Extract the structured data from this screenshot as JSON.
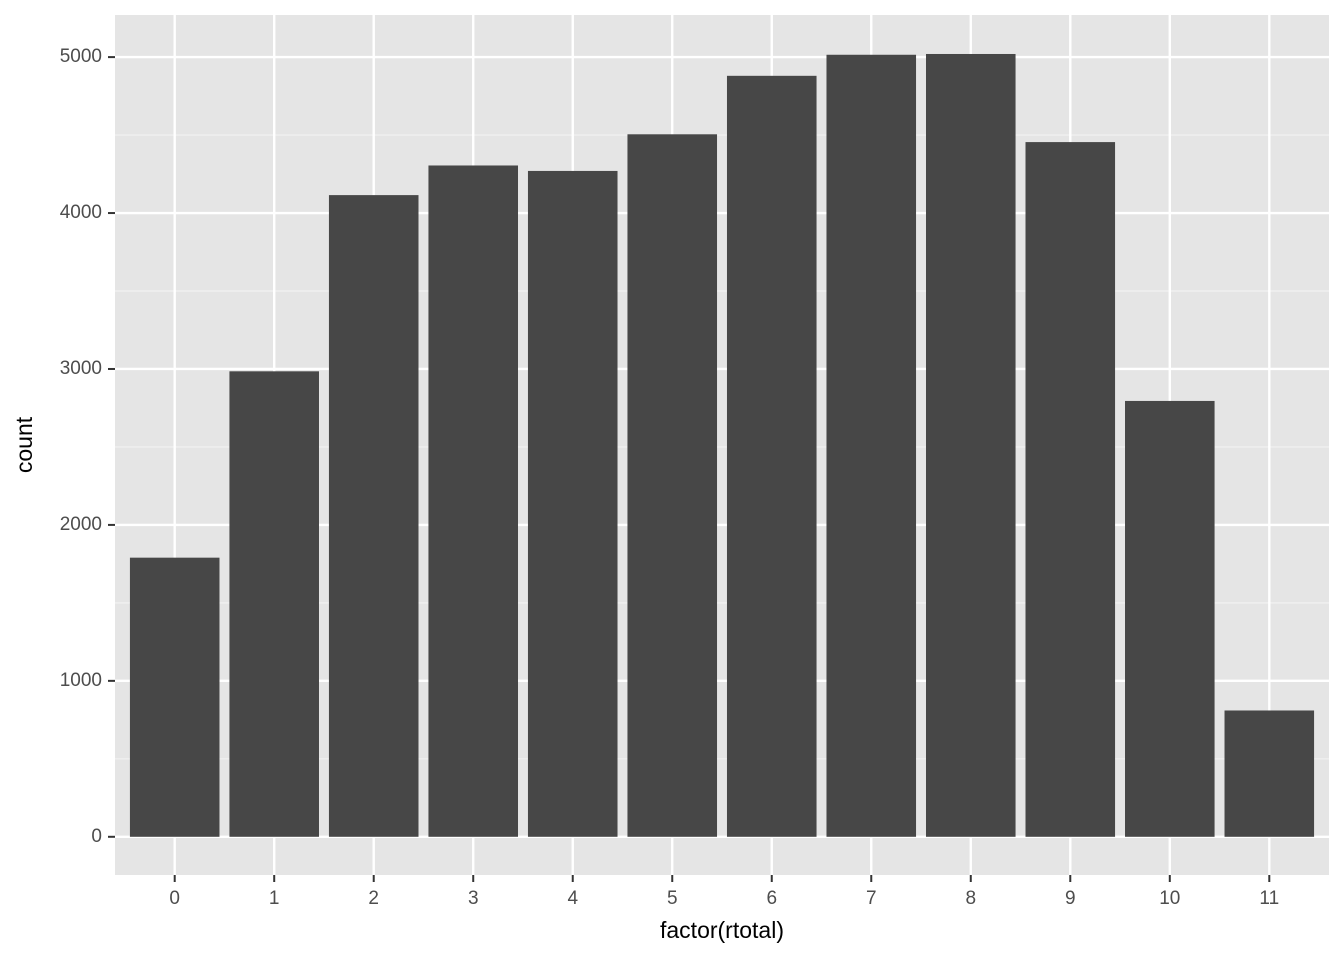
{
  "chart_data": {
    "type": "bar",
    "x_label": "factor(rtotal)",
    "y_label": "count",
    "categories": [
      "0",
      "1",
      "2",
      "3",
      "4",
      "5",
      "6",
      "7",
      "8",
      "9",
      "10",
      "11"
    ],
    "values": [
      1790,
      2985,
      4115,
      4305,
      4270,
      4505,
      4880,
      5015,
      5020,
      4455,
      2795,
      810
    ],
    "color": "#474747",
    "ylim": [
      -245,
      5270
    ],
    "yticks": [
      0,
      1000,
      2000,
      3000,
      4000,
      5000
    ],
    "grid": true
  }
}
